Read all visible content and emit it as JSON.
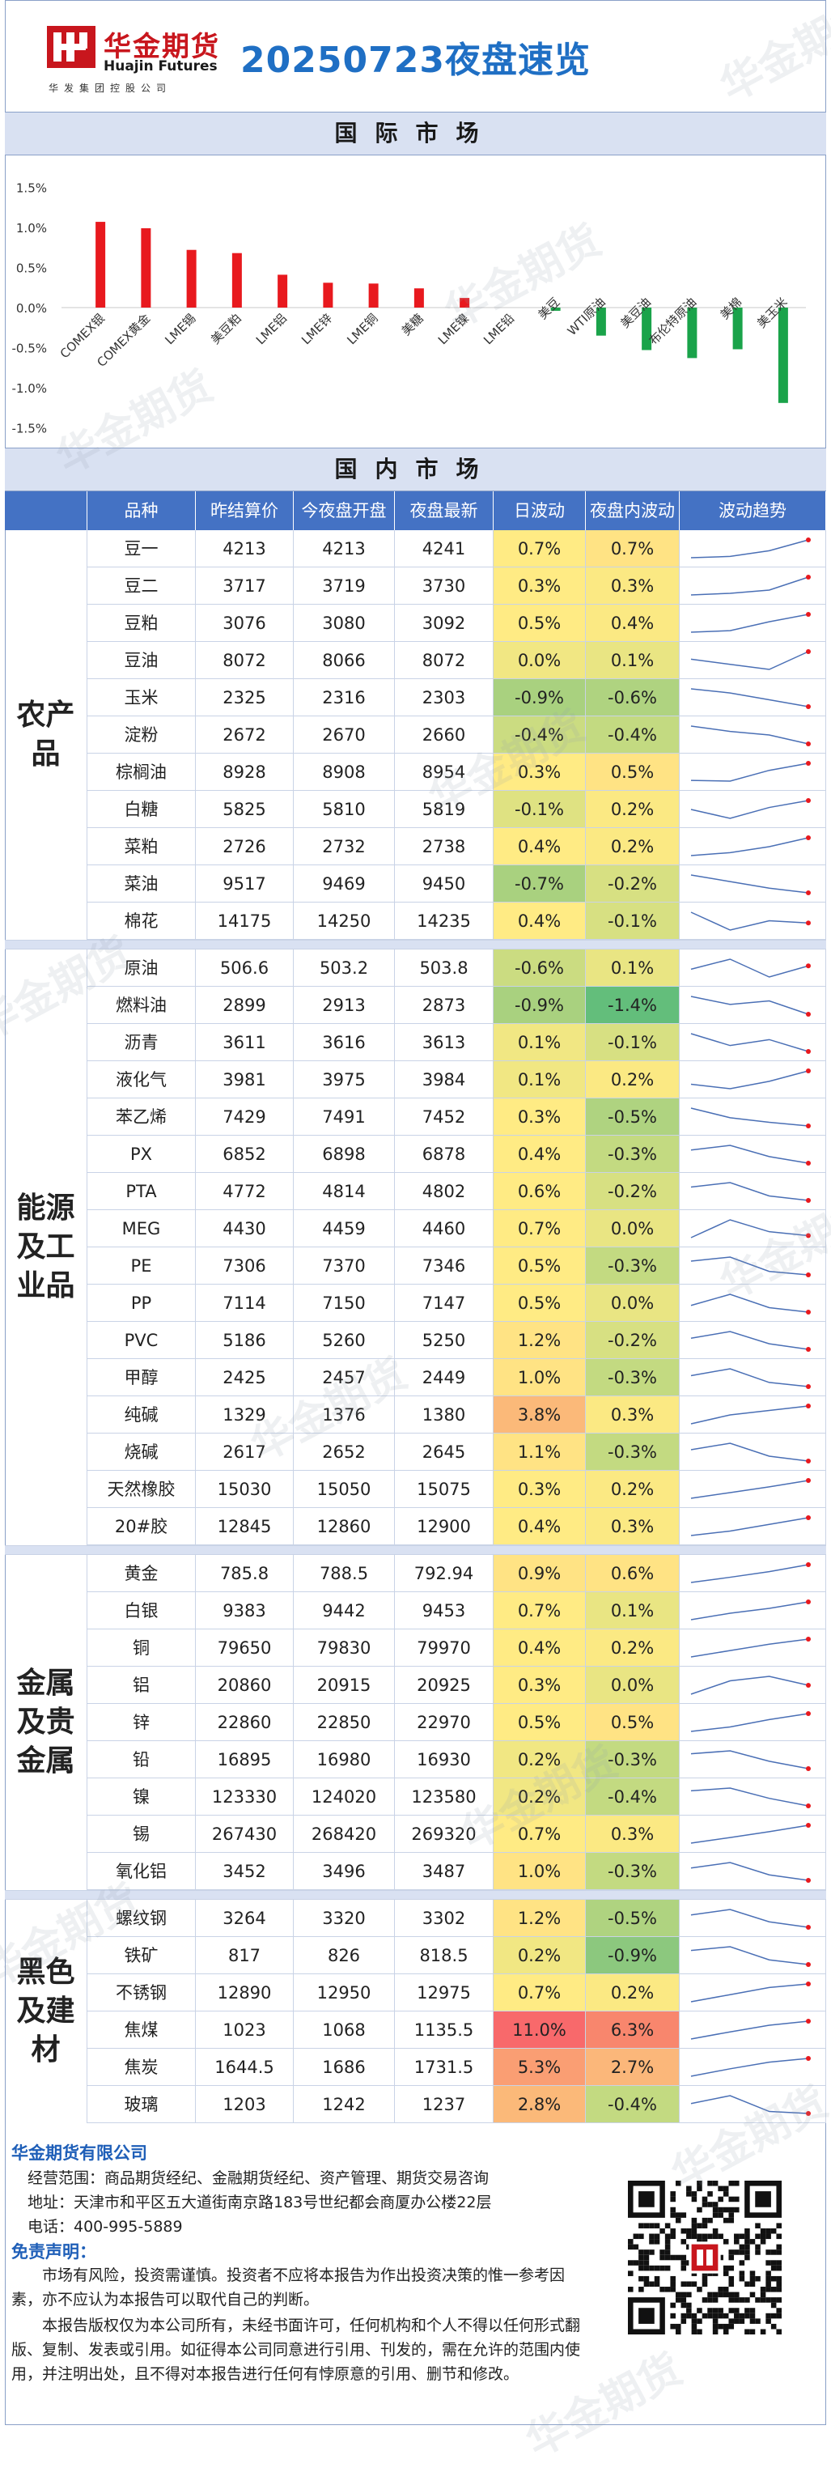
{
  "header": {
    "logo_cn": "华金期货",
    "logo_en": "Huajin Futures",
    "logo_sub": "华发集团控股公司",
    "title": "20250723夜盘速览"
  },
  "sections": {
    "international": "国际市场",
    "domestic": "国内市场"
  },
  "colors": {
    "up": "#e8191e",
    "down": "#1aa34a",
    "header_bar": "#4472c4",
    "section_bar": "#d9e1f2",
    "brand_blue": "#1f6fc4"
  },
  "chart_data": {
    "type": "bar",
    "categories": [
      "COMEX银",
      "COMEX黄金",
      "LME锡",
      "美豆粕",
      "LME铝",
      "LME锌",
      "LME铜",
      "美糖",
      "LME镍",
      "LME铅",
      "美豆",
      "WTI原油",
      "美豆油",
      "布伦特原油",
      "美棉",
      "美玉米"
    ],
    "values": [
      1.07,
      0.99,
      0.72,
      0.68,
      0.41,
      0.31,
      0.3,
      0.24,
      0.12,
      0.0,
      -0.04,
      -0.35,
      -0.53,
      -0.63,
      -0.52,
      -1.19
    ],
    "ylim": [
      -1.5,
      1.5
    ],
    "yticks": [
      "1.5%",
      "1.0%",
      "0.5%",
      "0.0%",
      "-0.5%",
      "-1.0%",
      "-1.5%"
    ],
    "grid": false,
    "legend": "none"
  },
  "table": {
    "headers": [
      "品种",
      "昨结算价",
      "今夜盘开盘",
      "夜盘最新",
      "日波动",
      "夜盘内波动",
      "波动趋势"
    ],
    "groups": [
      {
        "name": "农产品",
        "rows": [
          {
            "name": "豆一",
            "settle": "4213",
            "open": "4213",
            "last": "4241",
            "day": "0.7%",
            "night": "0.7%",
            "dayv": 0.7,
            "nightv": 0.7,
            "trend": [
              4213,
              4215,
              4224,
              4241
            ]
          },
          {
            "name": "豆二",
            "settle": "3717",
            "open": "3719",
            "last": "3730",
            "day": "0.3%",
            "night": "0.3%",
            "dayv": 0.3,
            "nightv": 0.3,
            "trend": [
              3719,
              3720,
              3722,
              3730
            ]
          },
          {
            "name": "豆粕",
            "settle": "3076",
            "open": "3080",
            "last": "3092",
            "day": "0.5%",
            "night": "0.4%",
            "dayv": 0.5,
            "nightv": 0.4,
            "trend": [
              3080,
              3081,
              3087,
              3092
            ]
          },
          {
            "name": "豆油",
            "settle": "8072",
            "open": "8066",
            "last": "8072",
            "day": "0.0%",
            "night": "0.1%",
            "dayv": 0.0,
            "nightv": 0.1,
            "trend": [
              8066,
              8062,
              8058,
              8072
            ]
          },
          {
            "name": "玉米",
            "settle": "2325",
            "open": "2316",
            "last": "2303",
            "day": "-0.9%",
            "night": "-0.6%",
            "dayv": -0.9,
            "nightv": -0.6,
            "trend": [
              2316,
              2313,
              2308,
              2303
            ]
          },
          {
            "name": "淀粉",
            "settle": "2672",
            "open": "2670",
            "last": "2660",
            "day": "-0.4%",
            "night": "-0.4%",
            "dayv": -0.4,
            "nightv": -0.4,
            "trend": [
              2670,
              2667,
              2665,
              2660
            ]
          },
          {
            "name": "棕榈油",
            "settle": "8928",
            "open": "8908",
            "last": "8954",
            "day": "0.3%",
            "night": "0.5%",
            "dayv": 0.3,
            "nightv": 0.5,
            "trend": [
              8908,
              8906,
              8935,
              8954
            ]
          },
          {
            "name": "白糖",
            "settle": "5825",
            "open": "5810",
            "last": "5819",
            "day": "-0.1%",
            "night": "0.2%",
            "dayv": -0.1,
            "nightv": 0.2,
            "trend": [
              5810,
              5801,
              5812,
              5819
            ]
          },
          {
            "name": "菜粕",
            "settle": "2726",
            "open": "2732",
            "last": "2738",
            "day": "0.4%",
            "night": "0.2%",
            "dayv": 0.4,
            "nightv": 0.2,
            "trend": [
              2732,
              2733,
              2735,
              2738
            ]
          },
          {
            "name": "菜油",
            "settle": "9517",
            "open": "9469",
            "last": "9450",
            "day": "-0.7%",
            "night": "-0.2%",
            "dayv": -0.7,
            "nightv": -0.2,
            "trend": [
              9469,
              9462,
              9455,
              9450
            ]
          },
          {
            "name": "棉花",
            "settle": "14175",
            "open": "14250",
            "last": "14235",
            "day": "0.4%",
            "night": "-0.1%",
            "dayv": 0.4,
            "nightv": -0.1,
            "trend": [
              14250,
              14225,
              14238,
              14235
            ]
          }
        ]
      },
      {
        "name": "能源及工业品",
        "rows": [
          {
            "name": "原油",
            "settle": "506.6",
            "open": "503.2",
            "last": "503.8",
            "day": "-0.6%",
            "night": "0.1%",
            "dayv": -0.6,
            "nightv": 0.1,
            "trend": [
              503.2,
              505,
              501.8,
              503.8
            ]
          },
          {
            "name": "燃料油",
            "settle": "2899",
            "open": "2913",
            "last": "2873",
            "day": "-0.9%",
            "night": "-1.4%",
            "dayv": -0.9,
            "nightv": -1.4,
            "trend": [
              2913,
              2895,
              2903,
              2873
            ]
          },
          {
            "name": "沥青",
            "settle": "3611",
            "open": "3616",
            "last": "3613",
            "day": "0.1%",
            "night": "-0.1%",
            "dayv": 0.1,
            "nightv": -0.1,
            "trend": [
              3616,
              3614,
              3615,
              3613
            ]
          },
          {
            "name": "液化气",
            "settle": "3981",
            "open": "3975",
            "last": "3984",
            "day": "0.1%",
            "night": "0.2%",
            "dayv": 0.1,
            "nightv": 0.2,
            "trend": [
              3975,
              3972,
              3977,
              3984
            ]
          },
          {
            "name": "苯乙烯",
            "settle": "7429",
            "open": "7491",
            "last": "7452",
            "day": "0.3%",
            "night": "-0.5%",
            "dayv": 0.3,
            "nightv": -0.5,
            "trend": [
              7491,
              7470,
              7460,
              7452
            ]
          },
          {
            "name": "PX",
            "settle": "6852",
            "open": "6898",
            "last": "6878",
            "day": "0.4%",
            "night": "-0.3%",
            "dayv": 0.4,
            "nightv": -0.3,
            "trend": [
              6898,
              6905,
              6888,
              6878
            ]
          },
          {
            "name": "PTA",
            "settle": "4772",
            "open": "4814",
            "last": "4802",
            "day": "0.6%",
            "night": "-0.2%",
            "dayv": 0.6,
            "nightv": -0.2,
            "trend": [
              4814,
              4818,
              4806,
              4802
            ]
          },
          {
            "name": "MEG",
            "settle": "4430",
            "open": "4459",
            "last": "4460",
            "day": "0.7%",
            "night": "0.0%",
            "dayv": 0.7,
            "nightv": 0.0,
            "trend": [
              4459,
              4468,
              4462,
              4460
            ]
          },
          {
            "name": "PE",
            "settle": "7306",
            "open": "7370",
            "last": "7346",
            "day": "0.5%",
            "night": "-0.3%",
            "dayv": 0.5,
            "nightv": -0.3,
            "trend": [
              7370,
              7377,
              7352,
              7346
            ]
          },
          {
            "name": "PP",
            "settle": "7114",
            "open": "7150",
            "last": "7147",
            "day": "0.5%",
            "night": "0.0%",
            "dayv": 0.5,
            "nightv": 0.0,
            "trend": [
              7150,
              7155,
              7149,
              7147
            ]
          },
          {
            "name": "PVC",
            "settle": "5186",
            "open": "5260",
            "last": "5250",
            "day": "1.2%",
            "night": "-0.2%",
            "dayv": 1.2,
            "nightv": -0.2,
            "trend": [
              5260,
              5266,
              5255,
              5250
            ]
          },
          {
            "name": "甲醇",
            "settle": "2425",
            "open": "2457",
            "last": "2449",
            "day": "1.0%",
            "night": "-0.3%",
            "dayv": 1.0,
            "nightv": -0.3,
            "trend": [
              2457,
              2462,
              2452,
              2449
            ]
          },
          {
            "name": "纯碱",
            "settle": "1329",
            "open": "1376",
            "last": "1380",
            "day": "3.8%",
            "night": "0.3%",
            "dayv": 3.8,
            "nightv": 0.3,
            "trend": [
              1376,
              1378,
              1379,
              1380
            ]
          },
          {
            "name": "烧碱",
            "settle": "2617",
            "open": "2652",
            "last": "2645",
            "day": "1.1%",
            "night": "-0.3%",
            "dayv": 1.1,
            "nightv": -0.3,
            "trend": [
              2652,
              2656,
              2648,
              2645
            ]
          },
          {
            "name": "天然橡胶",
            "settle": "15030",
            "open": "15050",
            "last": "15075",
            "day": "0.3%",
            "night": "0.2%",
            "dayv": 0.3,
            "nightv": 0.2,
            "trend": [
              15050,
              15058,
              15066,
              15075
            ]
          },
          {
            "name": "20#胶",
            "settle": "12845",
            "open": "12860",
            "last": "12900",
            "day": "0.4%",
            "night": "0.3%",
            "dayv": 0.4,
            "nightv": 0.3,
            "trend": [
              12860,
              12870,
              12885,
              12900
            ]
          }
        ]
      },
      {
        "name": "金属及贵金属",
        "rows": [
          {
            "name": "黄金",
            "settle": "785.8",
            "open": "788.5",
            "last": "792.94",
            "day": "0.9%",
            "night": "0.6%",
            "dayv": 0.9,
            "nightv": 0.6,
            "trend": [
              788.5,
              789.8,
              791.2,
              792.94
            ]
          },
          {
            "name": "白银",
            "settle": "9383",
            "open": "9442",
            "last": "9453",
            "day": "0.7%",
            "night": "0.1%",
            "dayv": 0.7,
            "nightv": 0.1,
            "trend": [
              9442,
              9446,
              9449,
              9453
            ]
          },
          {
            "name": "铜",
            "settle": "79650",
            "open": "79830",
            "last": "79970",
            "day": "0.4%",
            "night": "0.2%",
            "dayv": 0.4,
            "nightv": 0.2,
            "trend": [
              79830,
              79880,
              79930,
              79970
            ]
          },
          {
            "name": "铝",
            "settle": "20860",
            "open": "20915",
            "last": "20925",
            "day": "0.3%",
            "night": "0.0%",
            "dayv": 0.3,
            "nightv": 0.0,
            "trend": [
              20915,
              20930,
              20935,
              20925
            ]
          },
          {
            "name": "锌",
            "settle": "22860",
            "open": "22850",
            "last": "22970",
            "day": "0.5%",
            "night": "0.5%",
            "dayv": 0.5,
            "nightv": 0.5,
            "trend": [
              22850,
              22880,
              22930,
              22970
            ]
          },
          {
            "name": "铅",
            "settle": "16895",
            "open": "16980",
            "last": "16930",
            "day": "0.2%",
            "night": "-0.3%",
            "dayv": 0.2,
            "nightv": -0.3,
            "trend": [
              16980,
              16990,
              16955,
              16930
            ]
          },
          {
            "name": "镍",
            "settle": "123330",
            "open": "124020",
            "last": "123580",
            "day": "0.2%",
            "night": "-0.4%",
            "dayv": 0.2,
            "nightv": -0.4,
            "trend": [
              124020,
              124100,
              123800,
              123580
            ]
          },
          {
            "name": "锡",
            "settle": "267430",
            "open": "268420",
            "last": "269320",
            "day": "0.7%",
            "night": "0.3%",
            "dayv": 0.7,
            "nightv": 0.3,
            "trend": [
              268420,
              268700,
              269000,
              269320
            ]
          },
          {
            "name": "氧化铝",
            "settle": "3452",
            "open": "3496",
            "last": "3487",
            "day": "1.0%",
            "night": "-0.3%",
            "dayv": 1.0,
            "nightv": -0.3,
            "trend": [
              3496,
              3500,
              3491,
              3487
            ]
          }
        ]
      },
      {
        "name": "黑色及建材",
        "rows": [
          {
            "name": "螺纹钢",
            "settle": "3264",
            "open": "3320",
            "last": "3302",
            "day": "1.2%",
            "night": "-0.5%",
            "dayv": 1.2,
            "nightv": -0.5,
            "trend": [
              3320,
              3328,
              3310,
              3302
            ]
          },
          {
            "name": "铁矿",
            "settle": "817",
            "open": "826",
            "last": "818.5",
            "day": "0.2%",
            "night": "-0.9%",
            "dayv": 0.2,
            "nightv": -0.9,
            "trend": [
              826,
              828,
              821,
              818.5
            ]
          },
          {
            "name": "不锈钢",
            "settle": "12890",
            "open": "12950",
            "last": "12975",
            "day": "0.7%",
            "night": "0.2%",
            "dayv": 0.7,
            "nightv": 0.2,
            "trend": [
              12950,
              12960,
              12970,
              12975
            ]
          },
          {
            "name": "焦煤",
            "settle": "1023",
            "open": "1068",
            "last": "1135.5",
            "day": "11.0%",
            "night": "6.3%",
            "dayv": 11.0,
            "nightv": 6.3,
            "trend": [
              1068,
              1095,
              1120,
              1135.5
            ]
          },
          {
            "name": "焦炭",
            "settle": "1644.5",
            "open": "1686",
            "last": "1731.5",
            "day": "5.3%",
            "night": "2.7%",
            "dayv": 5.3,
            "nightv": 2.7,
            "trend": [
              1686,
              1705,
              1722,
              1731.5
            ]
          },
          {
            "name": "玻璃",
            "settle": "1203",
            "open": "1242",
            "last": "1237",
            "day": "2.8%",
            "night": "-0.4%",
            "dayv": 2.8,
            "nightv": -0.4,
            "trend": [
              1242,
              1246,
              1238,
              1237
            ]
          }
        ]
      }
    ]
  },
  "footer": {
    "company": "华金期货有限公司",
    "scope": "经营范围：商品期货经纪、金融期货经纪、资产管理、期货交易咨询",
    "address": "地址：天津市和平区五大道街南京路183号世纪都会商厦办公楼22层",
    "phone": "电话：400-995-5889",
    "disclaimer_title": "免责声明：",
    "para1": "市场有风险，投资需谨慎。投资者不应将本报告为作出投资决策的惟一参考因素，亦不应认为本报告可以取代自己的判断。",
    "para2": "本报告版权仅为本公司所有，未经书面许可，任何机构和个人不得以任何形式翻版、复制、发表或引用。如征得本公司同意进行引用、刊发的，需在允许的范围内使用，并注明出处，且不得对本报告进行任何有悖原意的引用、删节和修改。"
  }
}
